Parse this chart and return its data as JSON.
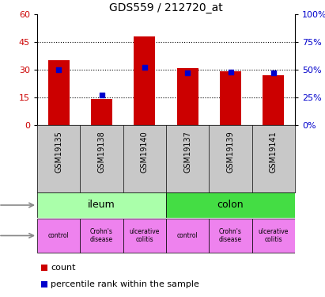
{
  "title": "GDS559 / 212720_at",
  "samples": [
    "GSM19135",
    "GSM19138",
    "GSM19140",
    "GSM19137",
    "GSM19139",
    "GSM19141"
  ],
  "counts": [
    35,
    14,
    48,
    31,
    29,
    27
  ],
  "percentiles": [
    50,
    27,
    52,
    47,
    48,
    47
  ],
  "ylim_left": [
    0,
    60
  ],
  "ylim_right": [
    0,
    100
  ],
  "yticks_left": [
    0,
    15,
    30,
    45,
    60
  ],
  "yticks_right": [
    0,
    25,
    50,
    75,
    100
  ],
  "bar_color": "#CC0000",
  "percentile_color": "#0000CC",
  "tissue_ileum_color": "#AAFFAA",
  "tissue_colon_color": "#44DD44",
  "disease_color": "#EE82EE",
  "sample_bg_color": "#C8C8C8",
  "left_axis_color": "#CC0000",
  "right_axis_color": "#0000CC",
  "disease_labels": [
    "control",
    "Crohn's\ndisease",
    "ulcerative\ncolitis",
    "control",
    "Crohn's\ndisease",
    "ulcerative\ncolitis"
  ]
}
